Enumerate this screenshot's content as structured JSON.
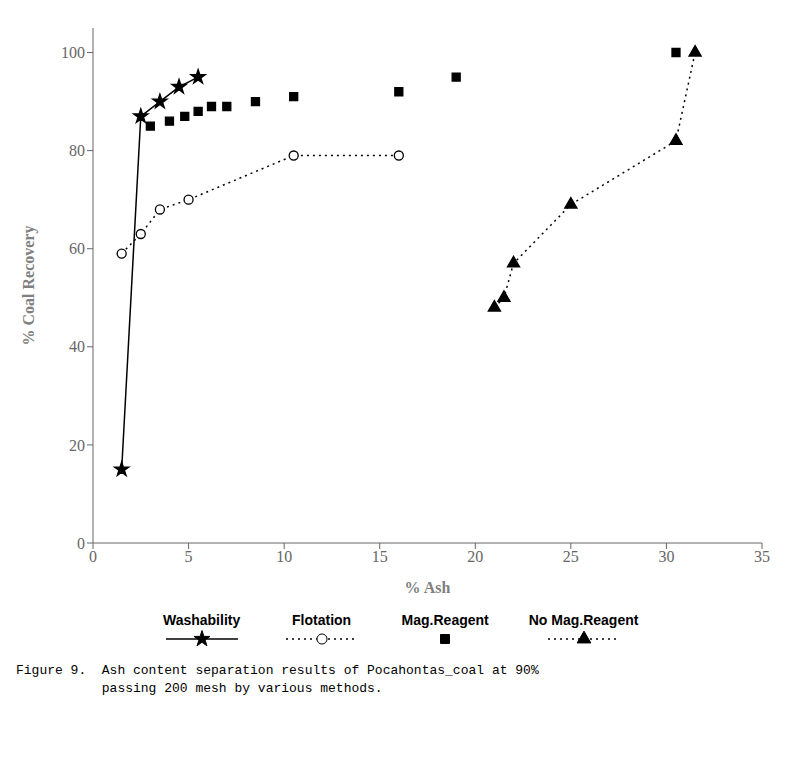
{
  "chart_data": {
    "type": "line",
    "x_label": "% Ash",
    "y_label": "% Coal Recovery",
    "annotations": [
      "Figure 9.  Ash content separation results of Pocahontas_coal at 90%",
      "           passing 200 mesh by various methods."
    ],
    "xlim": [
      0,
      35
    ],
    "ylim": [
      0,
      105
    ],
    "xticks": [
      0,
      5,
      10,
      15,
      20,
      25,
      30,
      35
    ],
    "yticks": [
      0,
      20,
      40,
      60,
      80,
      100
    ],
    "grid": false,
    "legend": "bottom",
    "series": [
      {
        "name": "Washability",
        "type": "line",
        "marker": "star",
        "line_style": "solid",
        "color": "black",
        "x": [
          1.5,
          2.5,
          3.5,
          4.5,
          5.5
        ],
        "values": [
          15,
          87,
          90,
          93,
          95
        ]
      },
      {
        "name": "Flotation",
        "type": "line",
        "marker": "open_circle",
        "line_style": "dotted",
        "color": "black",
        "x": [
          1.5,
          2.5,
          3.5,
          5.0,
          10.5,
          16.0
        ],
        "values": [
          59,
          63,
          68,
          70,
          79,
          79
        ]
      },
      {
        "name": "Mag.Reagent",
        "type": "scatter",
        "marker": "square",
        "color": "black",
        "x": [
          3.0,
          4.0,
          4.8,
          5.5,
          6.2,
          7.0,
          8.5,
          10.5,
          16.0,
          19.0,
          30.5
        ],
        "values": [
          85,
          86,
          87,
          88,
          89,
          89,
          90,
          91,
          92,
          95,
          100
        ]
      },
      {
        "name": "No Mag.Reagent",
        "type": "line",
        "marker": "triangle",
        "line_style": "dotted",
        "color": "black",
        "x": [
          21.0,
          21.5,
          22.0,
          25.0,
          30.5,
          31.5
        ],
        "values": [
          48,
          50,
          57,
          69,
          82,
          100
        ]
      }
    ]
  }
}
